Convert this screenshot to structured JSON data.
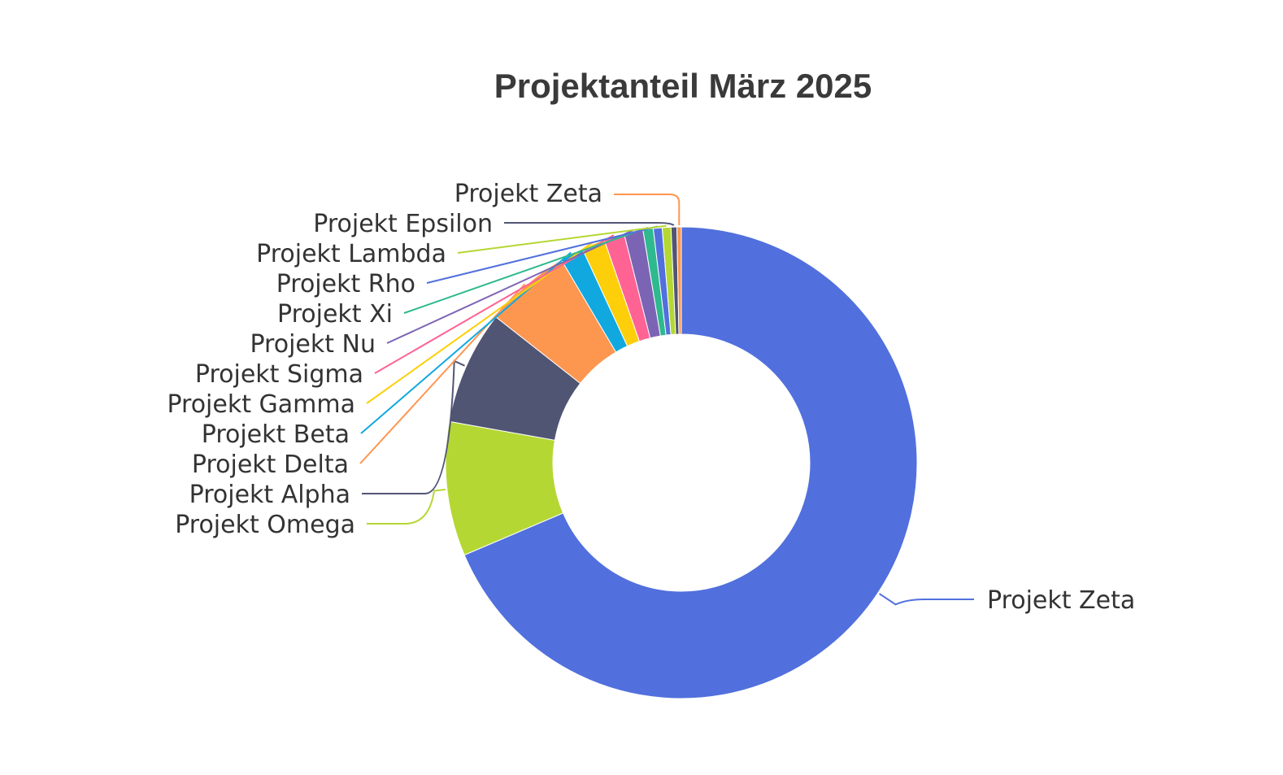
{
  "chart_data": {
    "type": "pie",
    "subtype": "donut",
    "title": "Projektanteil März 2025",
    "slices": [
      {
        "label": "Projekt Zeta",
        "value": 68.6,
        "color": "#5170dd"
      },
      {
        "label": "Projekt Omega",
        "value": 9.2,
        "color": "#b5d733"
      },
      {
        "label": "Projekt Alpha",
        "value": 7.8,
        "color": "#515574"
      },
      {
        "label": "Projekt Delta",
        "value": 5.9,
        "color": "#fd964f"
      },
      {
        "label": "Projekt Beta",
        "value": 1.6,
        "color": "#11a8e0"
      },
      {
        "label": "Projekt Gamma",
        "value": 1.6,
        "color": "#fdcf0a"
      },
      {
        "label": "Projekt Sigma",
        "value": 1.4,
        "color": "#ff6393"
      },
      {
        "label": "Projekt Nu",
        "value": 1.3,
        "color": "#7c64b5"
      },
      {
        "label": "Projekt Xi",
        "value": 0.7,
        "color": "#2fb98e"
      },
      {
        "label": "Projekt Rho",
        "value": 0.6,
        "color": "#5170dd"
      },
      {
        "label": "Projekt Lambda",
        "value": 0.6,
        "color": "#b5d733"
      },
      {
        "label": "Projekt Epsilon",
        "value": 0.4,
        "color": "#515574"
      },
      {
        "label": "Projekt Zeta",
        "value": 0.3,
        "color": "#fd964f"
      }
    ]
  }
}
